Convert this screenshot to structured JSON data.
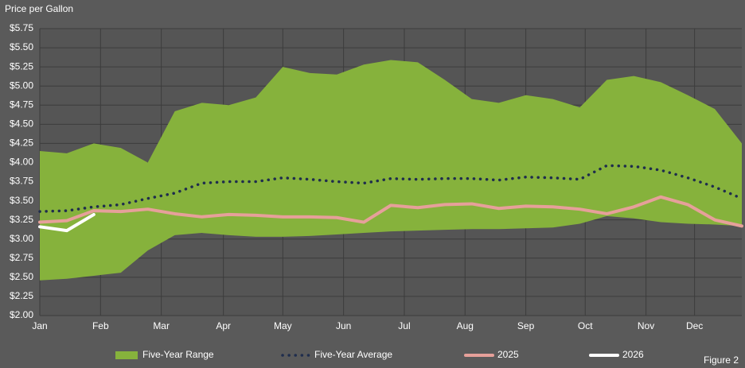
{
  "chart_data": {
    "type": "range-line",
    "title": "Price per Gallon",
    "figure_label": "Figure 2",
    "x": [
      0,
      2,
      4,
      6,
      8,
      10,
      12,
      14,
      16,
      18,
      20,
      22,
      24,
      26,
      28,
      30,
      32,
      34,
      36,
      38,
      40,
      42,
      44,
      46,
      48,
      50,
      52
    ],
    "xlim": [
      0,
      52
    ],
    "xticks": [
      {
        "value": 0,
        "label": "Jan"
      },
      {
        "value": 4.5,
        "label": "Feb"
      },
      {
        "value": 9,
        "label": "Mar"
      },
      {
        "value": 13.6,
        "label": "Apr"
      },
      {
        "value": 18,
        "label": "May"
      },
      {
        "value": 22.5,
        "label": "Jun"
      },
      {
        "value": 27,
        "label": "Jul"
      },
      {
        "value": 31.5,
        "label": "Aug"
      },
      {
        "value": 36,
        "label": "Sep"
      },
      {
        "value": 40.4,
        "label": "Oct"
      },
      {
        "value": 44.9,
        "label": "Nov"
      },
      {
        "value": 48.5,
        "label": "Dec"
      }
    ],
    "ylim": [
      2.0,
      5.75
    ],
    "yticks": [
      {
        "value": 2.0,
        "label": "$2.00"
      },
      {
        "value": 2.25,
        "label": "$2.25"
      },
      {
        "value": 2.5,
        "label": "$2.50"
      },
      {
        "value": 2.75,
        "label": "$2.75"
      },
      {
        "value": 3.0,
        "label": "$3.00"
      },
      {
        "value": 3.25,
        "label": "$3.25"
      },
      {
        "value": 3.5,
        "label": "$3.50"
      },
      {
        "value": 3.75,
        "label": "$3.75"
      },
      {
        "value": 4.0,
        "label": "$4.00"
      },
      {
        "value": 4.25,
        "label": "$4.25"
      },
      {
        "value": 4.5,
        "label": "$4.50"
      },
      {
        "value": 4.75,
        "label": "$4.75"
      },
      {
        "value": 5.0,
        "label": "$5.00"
      },
      {
        "value": 5.25,
        "label": "$5.25"
      },
      {
        "value": 5.5,
        "label": "$5.50"
      },
      {
        "value": 5.75,
        "label": "$5.75"
      }
    ],
    "grid": true,
    "legend": "bottom",
    "range": {
      "name": "Five-Year Range",
      "color": "#86b23c",
      "high": [
        4.15,
        4.12,
        4.25,
        4.19,
        4.0,
        4.67,
        4.78,
        4.75,
        4.85,
        5.25,
        5.17,
        5.15,
        5.28,
        5.34,
        5.31,
        5.08,
        4.83,
        4.78,
        4.88,
        4.83,
        4.72,
        5.08,
        5.13,
        5.05,
        4.88,
        4.7,
        4.25
      ],
      "low": [
        2.46,
        2.48,
        2.52,
        2.56,
        2.85,
        3.05,
        3.08,
        3.05,
        3.03,
        3.03,
        3.04,
        3.06,
        3.08,
        3.1,
        3.11,
        3.12,
        3.13,
        3.13,
        3.14,
        3.15,
        3.2,
        3.3,
        3.27,
        3.22,
        3.2,
        3.19,
        3.17
      ]
    },
    "series": [
      {
        "name": "Five-Year Average",
        "color": "#1f2d4d",
        "style": "dotted",
        "values": [
          3.36,
          3.37,
          3.42,
          3.45,
          3.53,
          3.6,
          3.73,
          3.75,
          3.75,
          3.8,
          3.78,
          3.75,
          3.73,
          3.79,
          3.78,
          3.79,
          3.79,
          3.77,
          3.81,
          3.8,
          3.78,
          3.96,
          3.95,
          3.9,
          3.8,
          3.68,
          3.53
        ]
      },
      {
        "name": "2025",
        "color": "#e6a09a",
        "style": "solid",
        "values": [
          3.22,
          3.24,
          3.37,
          3.36,
          3.39,
          3.33,
          3.29,
          3.32,
          3.31,
          3.29,
          3.29,
          3.28,
          3.22,
          3.44,
          3.41,
          3.45,
          3.46,
          3.4,
          3.43,
          3.42,
          3.39,
          3.33,
          3.42,
          3.55,
          3.45,
          3.25,
          3.17
        ]
      },
      {
        "name": "2026",
        "color": "#ffffff",
        "style": "solid",
        "values": [
          3.16,
          3.11,
          3.32,
          null,
          null,
          null,
          null,
          null,
          null,
          null,
          null,
          null,
          null,
          null,
          null,
          null,
          null,
          null,
          null,
          null,
          null,
          null,
          null,
          null,
          null,
          null,
          null
        ]
      }
    ]
  }
}
